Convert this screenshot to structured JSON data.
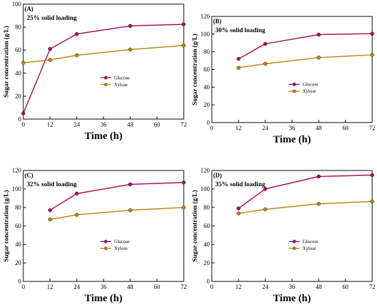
{
  "chart_data": [
    {
      "type": "line",
      "panel_label": "(A)",
      "title": "25% solid loading",
      "xlabel": "Time (h)",
      "ylabel": "Sugar concentration (g/L)",
      "xlim": [
        0,
        72
      ],
      "ylim": [
        0,
        100
      ],
      "xticks": [
        0,
        12,
        24,
        36,
        48,
        60,
        72
      ],
      "yticks": [
        0,
        20,
        40,
        60,
        80,
        100
      ],
      "grid": false,
      "legend_position": "center-right",
      "series": [
        {
          "name": "Glucose",
          "color": "#a50d5e",
          "x": [
            0,
            12,
            24,
            48,
            72
          ],
          "y": [
            5,
            61,
            74,
            81,
            82.5
          ]
        },
        {
          "name": "Xylose",
          "color": "#b8860b",
          "x": [
            0,
            12,
            24,
            48,
            72
          ],
          "y": [
            49,
            51.5,
            55.5,
            60.5,
            64
          ]
        }
      ]
    },
    {
      "type": "line",
      "panel_label": "(B)",
      "title": "30% solid loading",
      "xlabel": "Time (h)",
      "ylabel": "Sugar concentration (g/L)",
      "xlim": [
        0,
        72
      ],
      "ylim": [
        0,
        120
      ],
      "xticks": [
        0,
        12,
        24,
        36,
        48,
        60,
        72
      ],
      "yticks": [
        0,
        20,
        40,
        60,
        80,
        100,
        120
      ],
      "grid": false,
      "legend_position": "center-right",
      "series": [
        {
          "name": "Glucose",
          "color": "#a50d5e",
          "x": [
            12,
            24,
            48,
            72
          ],
          "y": [
            72,
            89,
            99.5,
            100.5
          ]
        },
        {
          "name": "Xylose",
          "color": "#b8860b",
          "x": [
            12,
            24,
            48,
            72
          ],
          "y": [
            62,
            66.5,
            73.5,
            76.5
          ]
        }
      ]
    },
    {
      "type": "line",
      "panel_label": "(C)",
      "title": "32% solid loading",
      "xlabel": "Time (h)",
      "ylabel": "Sugar concentration (g/L)",
      "xlim": [
        0,
        72
      ],
      "ylim": [
        0,
        120
      ],
      "xticks": [
        0,
        12,
        24,
        36,
        48,
        60,
        72
      ],
      "yticks": [
        0,
        20,
        40,
        60,
        80,
        100,
        120
      ],
      "grid": false,
      "legend_position": "center-right",
      "series": [
        {
          "name": "Glucose",
          "color": "#a50d5e",
          "x": [
            12,
            24,
            48,
            72
          ],
          "y": [
            77,
            95,
            105,
            107
          ]
        },
        {
          "name": "Xylose",
          "color": "#b8860b",
          "x": [
            12,
            24,
            48,
            72
          ],
          "y": [
            67,
            72,
            77,
            80
          ]
        }
      ]
    },
    {
      "type": "line",
      "panel_label": "(D)",
      "title": "35% solid loading",
      "xlabel": "Time (h)",
      "ylabel": "Sugar concentration (g/L)",
      "xlim": [
        0,
        72
      ],
      "ylim": [
        0,
        120
      ],
      "xticks": [
        0,
        12,
        24,
        36,
        48,
        60,
        72
      ],
      "yticks": [
        0,
        20,
        40,
        60,
        80,
        100,
        120
      ],
      "grid": false,
      "legend_position": "center-right",
      "series": [
        {
          "name": "Glucose",
          "color": "#a50d5e",
          "x": [
            12,
            24,
            48,
            72
          ],
          "y": [
            79,
            100,
            113.5,
            115
          ]
        },
        {
          "name": "Xylose",
          "color": "#b8860b",
          "x": [
            12,
            24,
            48,
            72
          ],
          "y": [
            73.5,
            78,
            84,
            86.5
          ]
        }
      ]
    }
  ]
}
